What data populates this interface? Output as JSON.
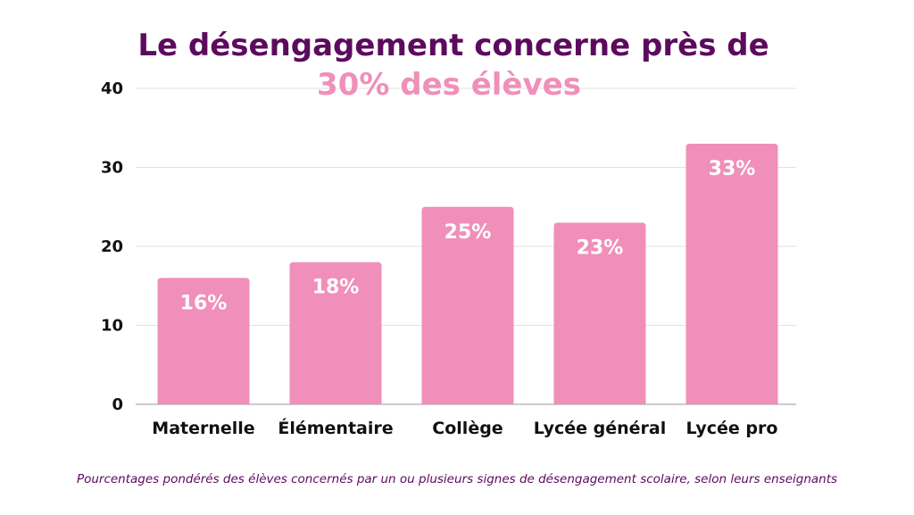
{
  "chart_data": {
    "type": "bar",
    "title_line1": "Le désengagement concerne près de",
    "title_line2": "30% des élèves",
    "categories": [
      "Maternelle",
      "Élémentaire",
      "Collège",
      "Lycée général",
      "Lycée pro"
    ],
    "values": [
      16,
      18,
      25,
      23,
      33
    ],
    "data_labels": [
      "16%",
      "18%",
      "25%",
      "23%",
      "33%"
    ],
    "yticks": [
      "0",
      "10",
      "20",
      "30",
      "40"
    ],
    "ylim": [
      0,
      40
    ],
    "grid": true,
    "legend": "none",
    "caption": "Pourcentages pondérés des élèves concernés par un ou plusieurs signes de désengagement scolaire, selon leurs enseignants"
  },
  "colors": {
    "bar": "#f08fba",
    "title_primary": "#5c0a5e",
    "title_accent": "#f08fba",
    "caption": "#5c0a5e",
    "grid": "#e2e2e2",
    "axis": "#bbbbbb"
  }
}
